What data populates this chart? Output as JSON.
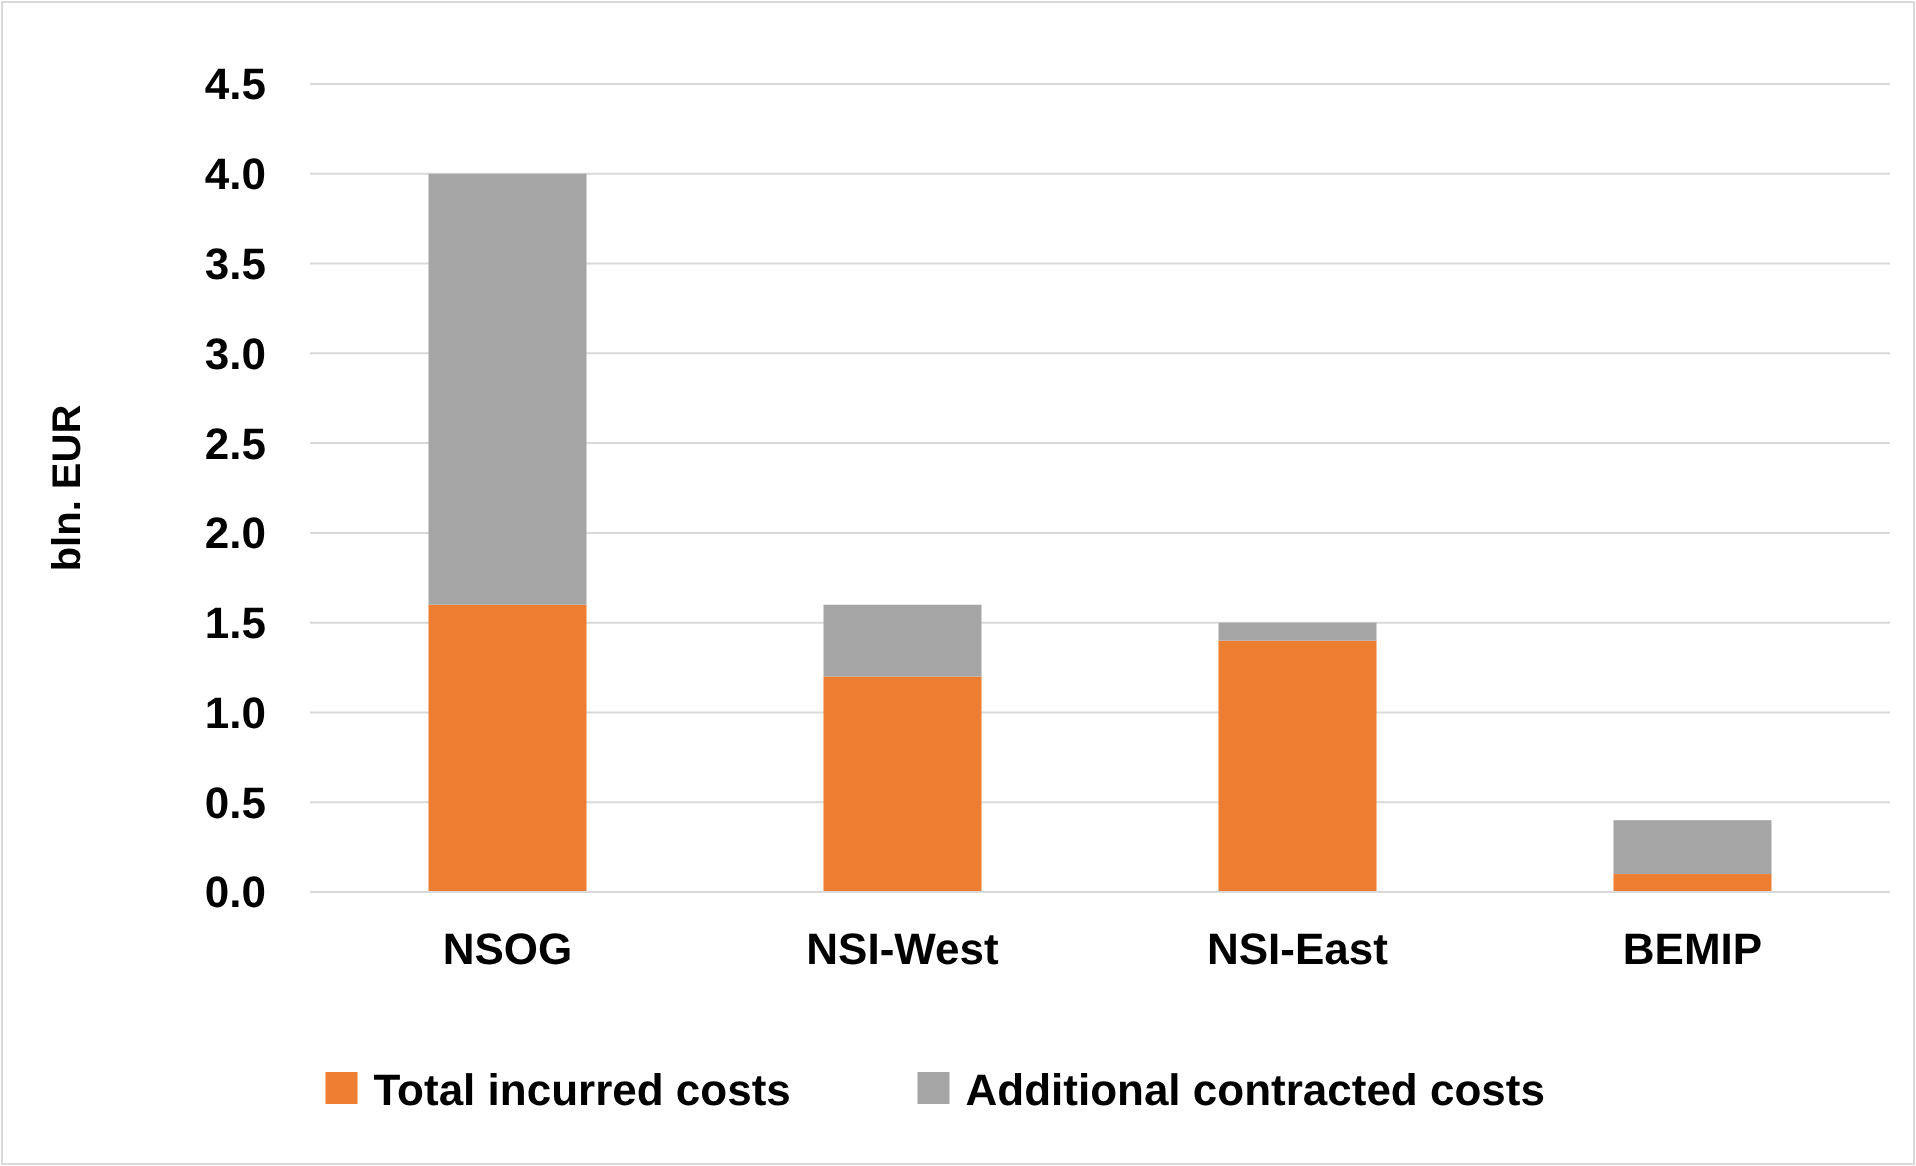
{
  "chart_data": {
    "type": "bar",
    "ylabel": "bln. EUR",
    "categories": [
      "NSOG",
      "NSI-West",
      "NSI-East",
      "BEMIP"
    ],
    "stacked": true,
    "series": [
      {
        "name": "Total incurred costs",
        "color": "#ed7d31",
        "values": [
          1.6,
          1.2,
          1.4,
          0.1
        ]
      },
      {
        "name": "Additional contracted costs",
        "color": "#a5a5a5",
        "values": [
          2.4,
          0.4,
          0.1,
          0.3
        ]
      }
    ],
    "ylim": [
      0,
      4.5
    ],
    "yticks": [
      {
        "value": 0,
        "label": "0.0"
      },
      {
        "value": 0.5,
        "label": "0.5"
      },
      {
        "value": 1,
        "label": "1.0"
      },
      {
        "value": 1.5,
        "label": "1.5"
      },
      {
        "value": 2,
        "label": "2.0"
      },
      {
        "value": 2.5,
        "label": "2.5"
      },
      {
        "value": 3,
        "label": "3.0"
      },
      {
        "value": 3.5,
        "label": "3.5"
      },
      {
        "value": 4,
        "label": "4.0"
      },
      {
        "value": 4.5,
        "label": "4.5"
      }
    ],
    "grid": "y",
    "legend": "bottom"
  }
}
